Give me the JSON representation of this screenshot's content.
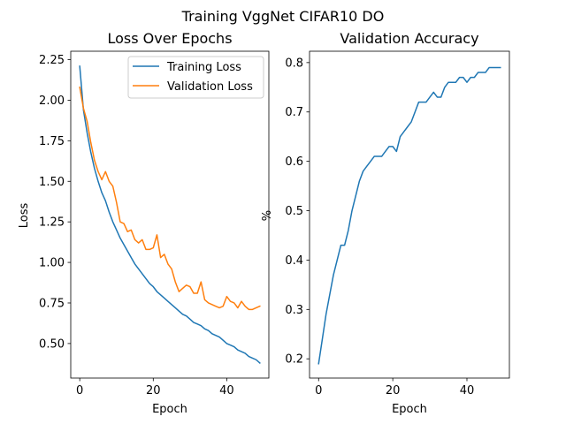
{
  "figure": {
    "suptitle": "Training VggNet CIFAR10 DO"
  },
  "chart_data": [
    {
      "type": "line",
      "title": "Loss Over Epochs",
      "xlabel": "Epoch",
      "ylabel": "Loss",
      "xlim": [
        -2.45,
        51.45
      ],
      "ylim": [
        0.287,
        2.302
      ],
      "xticks": [
        0,
        20,
        40
      ],
      "yticks": [
        0.5,
        0.75,
        1.0,
        1.25,
        1.5,
        1.75,
        2.0,
        2.25
      ],
      "ytick_labels": [
        "0.50",
        "0.75",
        "1.00",
        "1.25",
        "1.50",
        "1.75",
        "2.00",
        "2.25"
      ],
      "grid": false,
      "legend_position": "upper right",
      "x": [
        0,
        1,
        2,
        3,
        4,
        5,
        6,
        7,
        8,
        9,
        10,
        11,
        12,
        13,
        14,
        15,
        16,
        17,
        18,
        19,
        20,
        21,
        22,
        23,
        24,
        25,
        26,
        27,
        28,
        29,
        30,
        31,
        32,
        33,
        34,
        35,
        36,
        37,
        38,
        39,
        40,
        41,
        42,
        43,
        44,
        45,
        46,
        47,
        48,
        49
      ],
      "series": [
        {
          "name": "Training Loss",
          "color": "#1f77b4",
          "values": [
            2.21,
            1.94,
            1.8,
            1.68,
            1.58,
            1.5,
            1.43,
            1.38,
            1.31,
            1.25,
            1.2,
            1.15,
            1.11,
            1.07,
            1.03,
            0.99,
            0.96,
            0.93,
            0.9,
            0.87,
            0.85,
            0.82,
            0.8,
            0.78,
            0.76,
            0.74,
            0.72,
            0.7,
            0.68,
            0.67,
            0.65,
            0.63,
            0.62,
            0.61,
            0.59,
            0.58,
            0.56,
            0.55,
            0.54,
            0.52,
            0.5,
            0.49,
            0.48,
            0.46,
            0.45,
            0.44,
            0.42,
            0.41,
            0.4,
            0.38
          ]
        },
        {
          "name": "Validation Loss",
          "color": "#ff7f0e",
          "values": [
            2.08,
            1.95,
            1.87,
            1.74,
            1.63,
            1.56,
            1.51,
            1.56,
            1.5,
            1.47,
            1.37,
            1.25,
            1.24,
            1.19,
            1.2,
            1.14,
            1.12,
            1.14,
            1.08,
            1.08,
            1.09,
            1.17,
            1.03,
            1.05,
            0.99,
            0.96,
            0.88,
            0.82,
            0.84,
            0.86,
            0.85,
            0.81,
            0.81,
            0.88,
            0.77,
            0.75,
            0.74,
            0.73,
            0.72,
            0.73,
            0.79,
            0.76,
            0.75,
            0.72,
            0.76,
            0.73,
            0.71,
            0.71,
            0.72,
            0.73
          ]
        }
      ]
    },
    {
      "type": "line",
      "title": "Validation Accuracy",
      "xlabel": "Epoch",
      "ylabel": "%",
      "xlim": [
        -2.45,
        51.45
      ],
      "ylim": [
        0.161,
        0.823
      ],
      "xticks": [
        0,
        20,
        40
      ],
      "yticks": [
        0.2,
        0.3,
        0.4,
        0.5,
        0.6,
        0.7,
        0.8
      ],
      "ytick_labels": [
        "0.2",
        "0.3",
        "0.4",
        "0.5",
        "0.6",
        "0.7",
        "0.8"
      ],
      "grid": false,
      "x": [
        0,
        1,
        2,
        3,
        4,
        5,
        6,
        7,
        8,
        9,
        10,
        11,
        12,
        13,
        14,
        15,
        16,
        17,
        18,
        19,
        20,
        21,
        22,
        23,
        24,
        25,
        26,
        27,
        28,
        29,
        30,
        31,
        32,
        33,
        34,
        35,
        36,
        37,
        38,
        39,
        40,
        41,
        42,
        43,
        44,
        45,
        46,
        47,
        48,
        49
      ],
      "series": [
        {
          "color": "#1f77b4",
          "values": [
            0.19,
            0.24,
            0.29,
            0.33,
            0.37,
            0.4,
            0.43,
            0.43,
            0.46,
            0.5,
            0.53,
            0.56,
            0.58,
            0.59,
            0.6,
            0.61,
            0.61,
            0.61,
            0.62,
            0.63,
            0.63,
            0.62,
            0.65,
            0.66,
            0.67,
            0.68,
            0.7,
            0.72,
            0.72,
            0.72,
            0.73,
            0.74,
            0.73,
            0.73,
            0.75,
            0.76,
            0.76,
            0.76,
            0.77,
            0.77,
            0.76,
            0.77,
            0.77,
            0.78,
            0.78,
            0.78,
            0.79,
            0.79,
            0.79,
            0.79
          ]
        }
      ]
    }
  ]
}
